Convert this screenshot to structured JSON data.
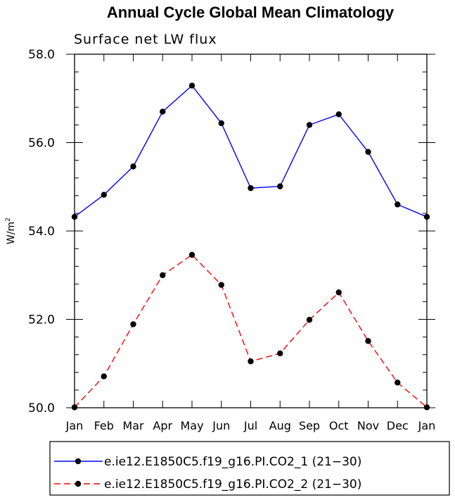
{
  "chart_data": {
    "type": "line",
    "title": "Annual Cycle Global Mean Climatology",
    "subtitle": "Surface net LW flux",
    "ylabel": "W/m",
    "ylabel_sup": "2",
    "xlabel": "",
    "categories": [
      "Jan",
      "Feb",
      "Mar",
      "Apr",
      "May",
      "Jun",
      "Jul",
      "Aug",
      "Sep",
      "Oct",
      "Nov",
      "Dec",
      "Jan"
    ],
    "ylim": [
      50.0,
      58.0
    ],
    "yticks": [
      "50.0",
      "52.0",
      "54.0",
      "56.0",
      "58.0"
    ],
    "yminor_step": 0.4,
    "grid": false,
    "legend_position": "bottom",
    "series": [
      {
        "name": "e.ie12.E1850C5.f19_g16.PI.CO2_1 (21−30)",
        "color": "#0000ff",
        "dash": "solid",
        "marker": "circle",
        "values": [
          54.32,
          54.82,
          55.46,
          56.7,
          57.29,
          56.44,
          54.97,
          55.01,
          56.4,
          56.64,
          55.79,
          54.6,
          54.32
        ]
      },
      {
        "name": "e.ie12.E1850C5.f19_g16.PI.CO2_2 (21−30)",
        "color": "#ff0000",
        "dash": "dashed",
        "marker": "circle",
        "values": [
          50.01,
          50.71,
          51.89,
          53.0,
          53.46,
          52.78,
          51.05,
          51.23,
          51.99,
          52.61,
          51.51,
          50.57,
          50.01
        ]
      }
    ]
  }
}
